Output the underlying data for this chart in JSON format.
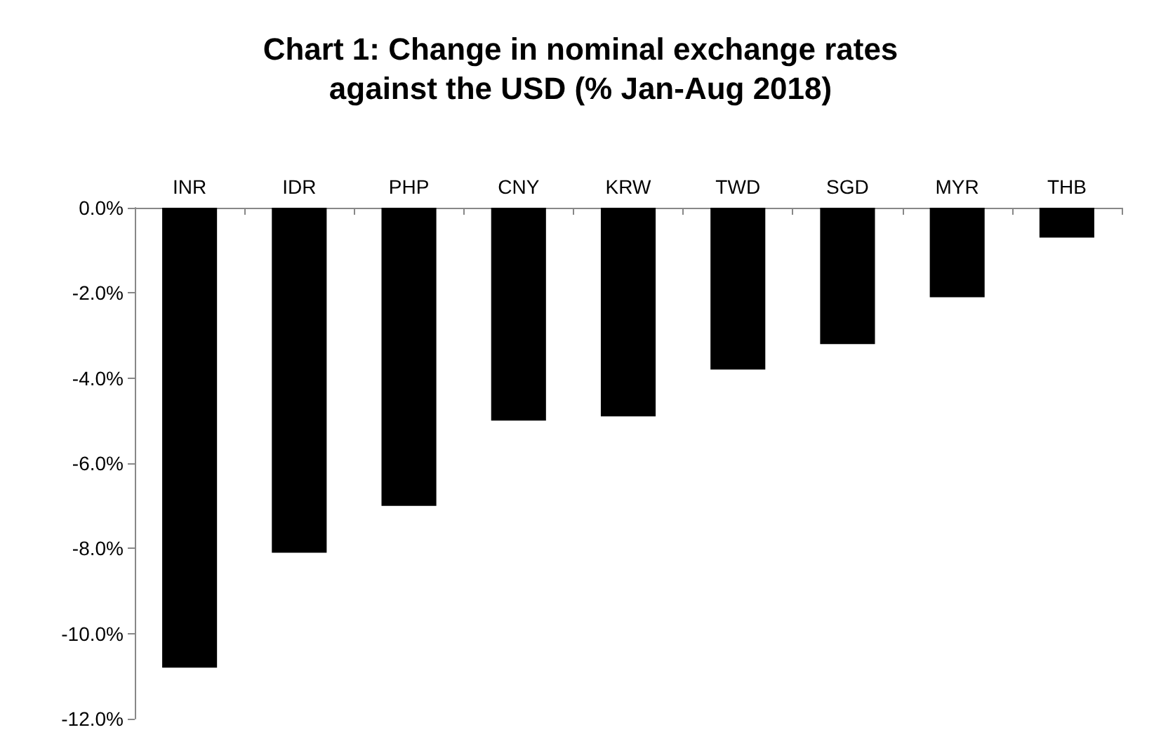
{
  "chart_data": {
    "type": "bar",
    "title": "Chart 1: Change in nominal exchange rates\nagainst the USD (% Jan-Aug 2018)",
    "categories": [
      "INR",
      "IDR",
      "PHP",
      "CNY",
      "KRW",
      "TWD",
      "SGD",
      "MYR",
      "THB"
    ],
    "values": [
      -10.8,
      -8.1,
      -7.0,
      -5.0,
      -4.9,
      -3.8,
      -3.2,
      -2.1,
      -0.7
    ],
    "color": "#000000",
    "ylim": [
      -12,
      0
    ],
    "yticks": [
      {
        "value": -12,
        "label": "-12.0%"
      },
      {
        "value": -10,
        "label": "-10.0%"
      },
      {
        "value": -8,
        "label": "-8.0%"
      },
      {
        "value": -6,
        "label": "-6.0%"
      },
      {
        "value": -4,
        "label": "-4.0%"
      },
      {
        "value": -2,
        "label": "-2.0%"
      },
      {
        "value": 0,
        "label": "0.0%"
      }
    ],
    "grid": false
  }
}
